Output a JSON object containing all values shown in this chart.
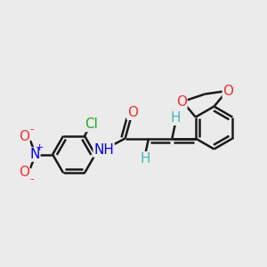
{
  "background_color": "#ebebeb",
  "bond_color": "#1a1a1a",
  "bond_width": 1.8,
  "atom_colors": {
    "H": "#4ab8b8",
    "N": "#0000ee",
    "O": "#ee3333",
    "Cl": "#22aa22"
  },
  "font_size": 11,
  "fig_size": [
    3.0,
    3.0
  ],
  "dpi": 100
}
